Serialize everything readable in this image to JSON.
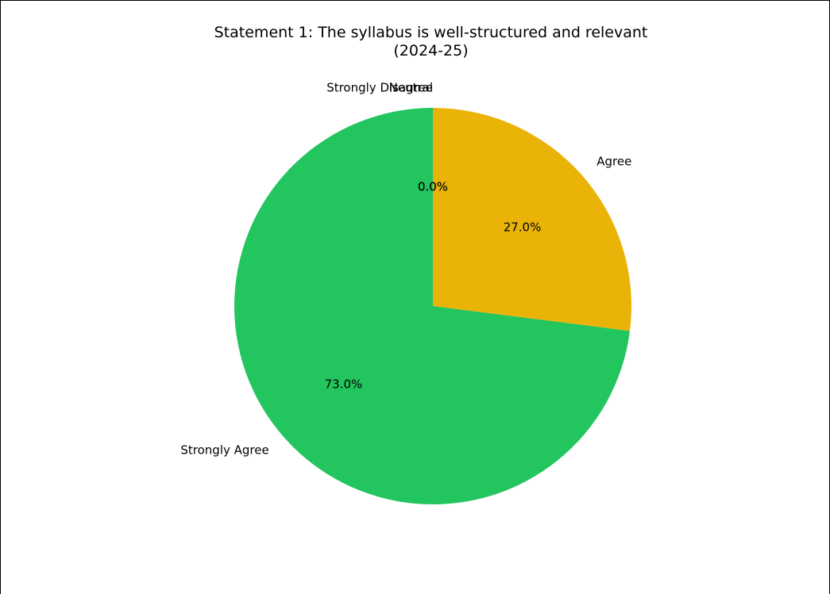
{
  "chart_data": {
    "type": "pie",
    "title_line1": "Statement 1: The syllabus is well-structured and relevant",
    "title_line2": "(2024-25)",
    "start_angle_deg": 90,
    "direction": "clockwise",
    "slices": [
      {
        "label": "Agree",
        "value": 27.0,
        "pct_label": "27.0%",
        "color": "#EAB308"
      },
      {
        "label": "Strongly Agree",
        "value": 73.0,
        "pct_label": "73.0%",
        "color": "#22C55E"
      },
      {
        "label": "Strongly Disagree",
        "value": 0.0,
        "pct_label": "0.0%",
        "color": "#EF4444"
      },
      {
        "label": "Neutral",
        "value": 0.0,
        "pct_label": "0.0%",
        "color": "#9CA3AF"
      }
    ]
  }
}
